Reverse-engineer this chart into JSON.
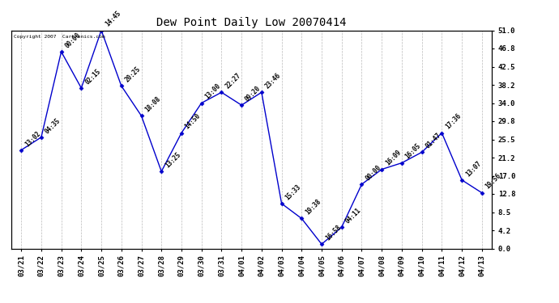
{
  "title": "Dew Point Daily Low 20070414",
  "copyright": "Copyright 2007  Cartronics.com",
  "x_labels": [
    "03/21",
    "03/22",
    "03/23",
    "03/24",
    "03/25",
    "03/26",
    "03/27",
    "03/28",
    "03/29",
    "03/30",
    "03/31",
    "04/01",
    "04/02",
    "04/03",
    "04/04",
    "04/05",
    "04/06",
    "04/07",
    "04/08",
    "04/09",
    "04/10",
    "04/11",
    "04/12",
    "04/13"
  ],
  "y_values": [
    23.0,
    26.0,
    46.0,
    37.5,
    51.0,
    38.0,
    31.0,
    18.0,
    27.0,
    34.0,
    36.5,
    33.5,
    36.5,
    10.5,
    7.0,
    1.0,
    5.0,
    15.0,
    18.5,
    20.0,
    22.5,
    27.0,
    16.0,
    13.0
  ],
  "point_labels": [
    "13:02",
    "04:35",
    "00:00",
    "02:15",
    "14:45",
    "20:25",
    "18:08",
    "13:25",
    "14:50",
    "13:00",
    "22:27",
    "09:20",
    "23:46",
    "15:33",
    "19:38",
    "16:58",
    "04:11",
    "00:00",
    "16:09",
    "16:05",
    "01:47",
    "17:36",
    "13:07",
    "19:56"
  ],
  "y_right_ticks": [
    0.0,
    4.2,
    8.5,
    12.8,
    17.0,
    21.2,
    25.5,
    29.8,
    34.0,
    38.2,
    42.5,
    46.8,
    51.0
  ],
  "ylim": [
    0.0,
    51.0
  ],
  "line_color": "#0000cc",
  "marker_color": "#0000cc",
  "bg_color": "#ffffff",
  "grid_color": "#bbbbbb",
  "title_fontsize": 10,
  "label_fontsize": 6.5,
  "point_label_fontsize": 5.5
}
